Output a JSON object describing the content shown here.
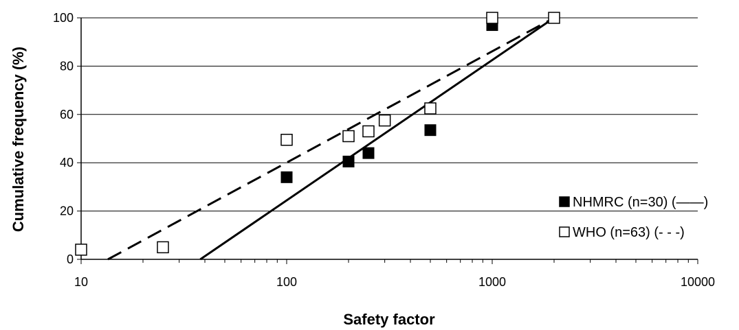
{
  "chart_data": {
    "type": "scatter",
    "xlabel": "Safety factor",
    "ylabel": "Cumulative frequency (%)",
    "xscale": "log",
    "xlim": [
      10,
      10000
    ],
    "ylim": [
      0,
      100
    ],
    "x_ticks": [
      "10",
      "100",
      "1000",
      "10000"
    ],
    "y_ticks": [
      "0",
      "20",
      "40",
      "60",
      "80",
      "100"
    ],
    "grid": "horizontal",
    "legend_position": "right",
    "series": [
      {
        "name": "NHMRC (n=30) (——)",
        "marker": "filled-square",
        "color": "#000000",
        "points": [
          [
            100,
            34
          ],
          [
            200,
            40.5
          ],
          [
            250,
            44
          ],
          [
            500,
            53.5
          ],
          [
            1000,
            97
          ],
          [
            2000,
            100
          ]
        ],
        "fit_line": {
          "style": "solid",
          "points": [
            [
              38,
              0
            ],
            [
              2000,
              100
            ]
          ]
        }
      },
      {
        "name": "WHO (n=63) (- - -)",
        "marker": "open-square",
        "color": "#000000",
        "points": [
          [
            10,
            4
          ],
          [
            25,
            5
          ],
          [
            100,
            49.5
          ],
          [
            200,
            51
          ],
          [
            250,
            53
          ],
          [
            300,
            57.5
          ],
          [
            500,
            62.5
          ],
          [
            1000,
            100
          ],
          [
            2000,
            100
          ]
        ],
        "fit_line": {
          "style": "dashed",
          "points": [
            [
              13.5,
              0
            ],
            [
              2000,
              100
            ]
          ]
        }
      }
    ]
  }
}
